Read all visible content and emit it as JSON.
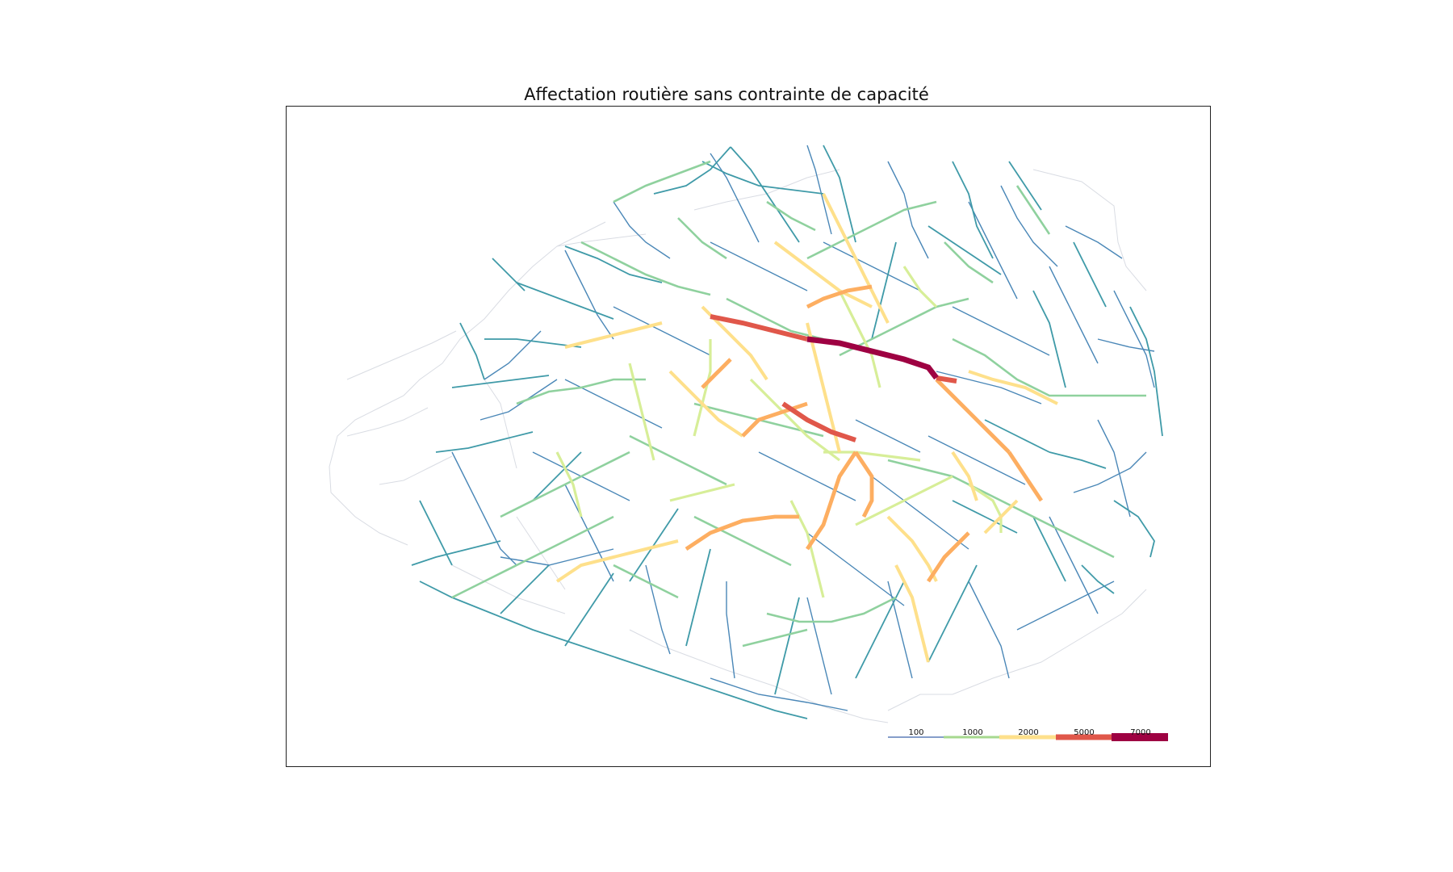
{
  "figure": {
    "title": "Affectation routière sans contrainte de capacité"
  },
  "legend": {
    "items": [
      {
        "label": "100",
        "color": "#5e7fb8"
      },
      {
        "label": "1000",
        "color": "#a6d98f"
      },
      {
        "label": "2000",
        "color": "#fee08b"
      },
      {
        "label": "5000",
        "color": "#e0574a"
      },
      {
        "label": "7000",
        "color": "#9e0142"
      }
    ]
  },
  "colors": {
    "very_low": "#d9dce3",
    "low": "#4a87b7",
    "low_mid": "#52a7ac",
    "mid": "#8fd19e",
    "mid_high": "#d7ee98",
    "high": "#fee08b",
    "higher": "#fdae61",
    "very_high": "#e0574a",
    "extreme": "#9e0142"
  }
}
